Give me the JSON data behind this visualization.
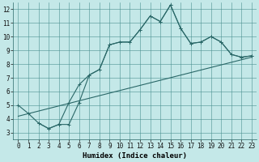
{
  "xlabel": "Humidex (Indice chaleur)",
  "bg_color": "#c4e8e8",
  "grid_color": "#4a9090",
  "line_color": "#2a6868",
  "xlim": [
    -0.5,
    23.5
  ],
  "ylim": [
    2.5,
    12.5
  ],
  "xticks": [
    0,
    1,
    2,
    3,
    4,
    5,
    6,
    7,
    8,
    9,
    10,
    11,
    12,
    13,
    14,
    15,
    16,
    17,
    18,
    19,
    20,
    21,
    22,
    23
  ],
  "yticks": [
    3,
    4,
    5,
    6,
    7,
    8,
    9,
    10,
    11,
    12
  ],
  "line1_x": [
    0,
    1,
    2,
    3,
    4,
    5,
    6,
    7,
    8,
    9,
    10,
    11,
    12,
    13,
    14,
    15,
    16,
    17,
    18,
    19,
    20,
    21,
    22,
    23
  ],
  "line1_y": [
    5.0,
    4.4,
    3.7,
    3.3,
    3.6,
    5.2,
    6.5,
    7.2,
    7.6,
    9.4,
    9.6,
    9.6,
    10.5,
    11.5,
    11.1,
    12.3,
    10.6,
    9.5,
    9.6,
    10.0,
    9.6,
    8.7,
    8.5,
    8.6
  ],
  "line2_x": [
    2,
    3,
    4,
    5,
    6,
    7,
    8,
    9,
    10,
    11,
    12,
    13,
    14,
    15,
    16,
    17,
    18,
    19,
    20,
    21,
    22,
    23
  ],
  "line2_y": [
    3.7,
    3.3,
    3.6,
    3.6,
    5.2,
    7.2,
    7.6,
    9.4,
    9.6,
    9.6,
    10.5,
    11.5,
    11.1,
    12.3,
    10.6,
    9.5,
    9.6,
    10.0,
    9.6,
    8.7,
    8.5,
    8.6
  ],
  "line3_x": [
    0,
    23
  ],
  "line3_y": [
    4.2,
    8.5
  ],
  "markersize": 3.5,
  "linewidth": 0.8,
  "tick_fontsize": 5.5,
  "xlabel_fontsize": 6.5
}
